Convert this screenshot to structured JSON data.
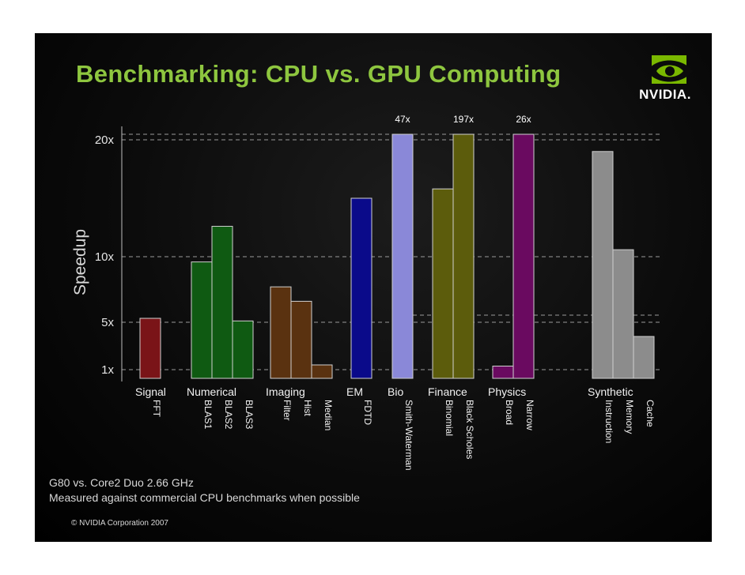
{
  "slide": {
    "title": "Benchmarking: CPU vs. GPU Computing",
    "logo_text": "NVIDIA.",
    "logo_icon": "nvidia-eye-icon",
    "footnote_1": "G80 vs. Core2 Duo 2.66 GHz",
    "footnote_2": "Measured against commercial CPU benchmarks when possible",
    "copyright": "© NVIDIA Corporation 2007"
  },
  "chart_data": {
    "type": "bar",
    "title": "Benchmarking: CPU vs. GPU Computing",
    "ylabel": "Speedup",
    "xlabel": "",
    "y_ticks": [
      "1x",
      "5x",
      "10x",
      "20x"
    ],
    "grid": "dashed horizontal lines at 1x, 5x, 10x, 20x",
    "groups": [
      {
        "name": "Signal",
        "color": "#7a1418",
        "bars": [
          {
            "label": "FFT",
            "value": 5.3
          }
        ]
      },
      {
        "name": "Numerical",
        "color": "#0f5a12",
        "bars": [
          {
            "label": "BLAS1",
            "value": 9.6
          },
          {
            "label": "BLAS2",
            "value": 12.6
          },
          {
            "label": "BLAS3",
            "value": 5.1
          }
        ]
      },
      {
        "name": "Imaging",
        "color": "#5a3210",
        "bars": [
          {
            "label": "Filter",
            "value": 7.7
          },
          {
            "label": "Hist",
            "value": 6.6
          },
          {
            "label": "Median",
            "value": 1.4
          }
        ]
      },
      {
        "name": "EM",
        "color": "#0a0a8a",
        "bars": [
          {
            "label": "FDTD",
            "value": 15.0
          }
        ]
      },
      {
        "name": "Bio",
        "color": "#8a88d8",
        "bars": [
          {
            "label": "Smith-Waterman",
            "value": 47,
            "annotation": "47x"
          }
        ]
      },
      {
        "name": "Finance",
        "color": "#5c5c0c",
        "bars": [
          {
            "label": "Binomial",
            "value": 15.8
          },
          {
            "label": "Black Scholes",
            "value": 197,
            "annotation": "197x"
          }
        ]
      },
      {
        "name": "Physics",
        "color": "#6a0a60",
        "bars": [
          {
            "label": "Broad",
            "value": 1.3
          },
          {
            "label": "Narrow",
            "value": 26,
            "annotation": "26x"
          }
        ]
      },
      {
        "name": "Synthetic",
        "color": "#8c8c8c",
        "bars": [
          {
            "label": "Instruction",
            "value": 19.0
          },
          {
            "label": "Memory",
            "value": 10.6
          },
          {
            "label": "Cache",
            "value": 3.8
          }
        ]
      }
    ]
  }
}
